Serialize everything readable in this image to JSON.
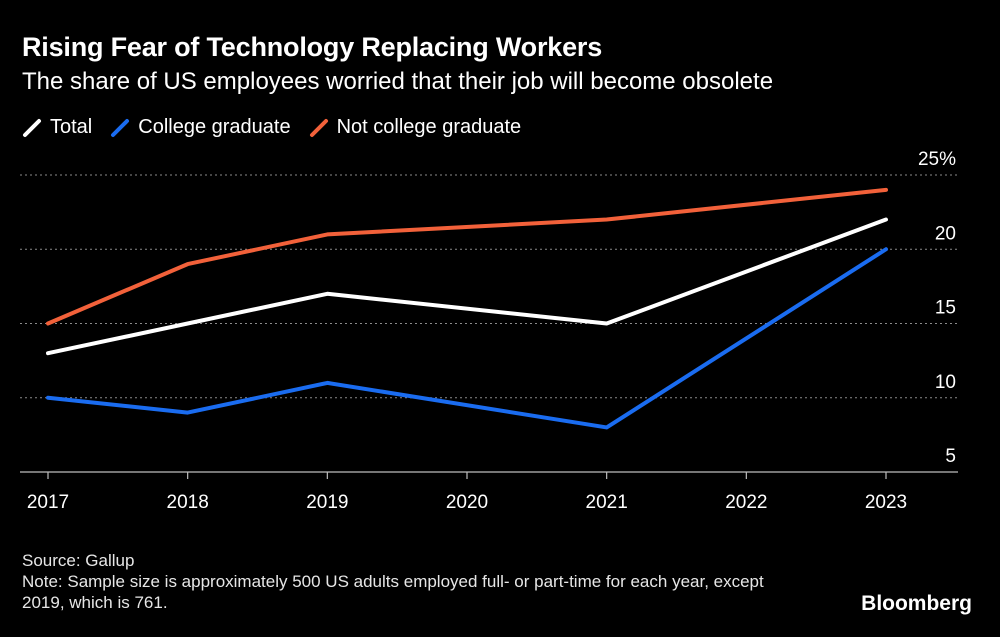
{
  "title": "Rising Fear of Technology Replacing Workers",
  "subtitle": "The share of US employees worried that their job will become obsolete",
  "source": "Source: Gallup",
  "note": "Note: Sample size is approximately 500 US adults employed full- or part-time for each year, except 2019, which is 761.",
  "brand": "Bloomberg",
  "colors": {
    "background": "#000000",
    "grid": "#8a8a8a",
    "text": "#ffffff"
  },
  "chart_data": {
    "type": "line",
    "x": [
      2017,
      2018,
      2019,
      2020,
      2021,
      2022,
      2023
    ],
    "xlim": [
      2017,
      2023
    ],
    "ylim": [
      5,
      25
    ],
    "yticks": [
      5,
      10,
      15,
      20,
      25
    ],
    "ytick_labels": [
      "5",
      "10",
      "15",
      "20",
      "25%"
    ],
    "grid": true,
    "legend_position": "top-left",
    "series": [
      {
        "name": "Total",
        "color": "#ffffff",
        "x": [
          2017,
          2018,
          2019,
          2021,
          2023
        ],
        "values": [
          13,
          15,
          17,
          15,
          22
        ]
      },
      {
        "name": "College graduate",
        "color": "#1a6cf0",
        "x": [
          2017,
          2018,
          2019,
          2021,
          2023
        ],
        "values": [
          10,
          9,
          11,
          8,
          20
        ]
      },
      {
        "name": "Not college graduate",
        "color": "#f2613a",
        "x": [
          2017,
          2018,
          2019,
          2021,
          2023
        ],
        "values": [
          15,
          19,
          21,
          22,
          24
        ]
      }
    ]
  }
}
